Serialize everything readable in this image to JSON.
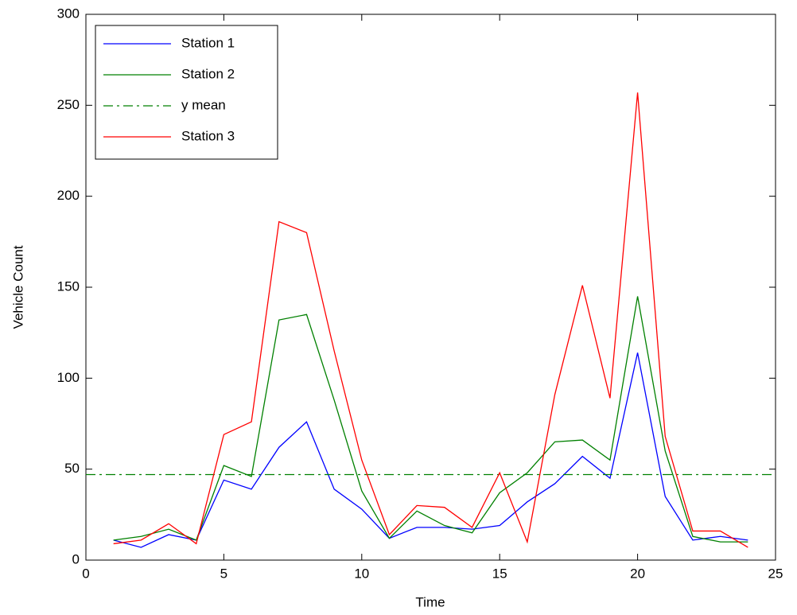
{
  "chart_data": {
    "type": "line",
    "xlabel": "Time",
    "ylabel": "Vehicle Count",
    "x": [
      1,
      2,
      3,
      4,
      5,
      6,
      7,
      8,
      9,
      10,
      11,
      12,
      13,
      14,
      15,
      16,
      17,
      18,
      19,
      20,
      21,
      22,
      23,
      24
    ],
    "series": [
      {
        "name": "Station 1",
        "color": "#0000ff",
        "style": "solid",
        "values": [
          11,
          7,
          14,
          11,
          44,
          39,
          62,
          76,
          39,
          28,
          12,
          18,
          18,
          17,
          19,
          32,
          42,
          57,
          45,
          114,
          35,
          11,
          13,
          11
        ]
      },
      {
        "name": "Station 2",
        "color": "#008000",
        "style": "solid",
        "values": [
          11,
          13,
          17,
          11,
          52,
          46,
          132,
          135,
          88,
          38,
          12,
          27,
          19,
          15,
          37,
          48,
          65,
          66,
          55,
          145,
          60,
          13,
          10,
          10
        ]
      },
      {
        "name": "y mean",
        "color": "#008000",
        "style": "dashdot",
        "x": [
          0,
          25
        ],
        "values": [
          47,
          47
        ]
      },
      {
        "name": "Station 3",
        "color": "#ff0000",
        "style": "solid",
        "values": [
          9,
          11,
          20,
          9,
          69,
          76,
          186,
          180,
          115,
          55,
          14,
          30,
          29,
          18,
          48,
          10,
          91,
          151,
          89,
          257,
          68,
          16,
          16,
          7
        ]
      }
    ],
    "xlim": [
      0,
      25
    ],
    "xticks": [
      0,
      5,
      10,
      15,
      20,
      25
    ],
    "ylim": [
      0,
      300
    ],
    "yticks": [
      0,
      50,
      100,
      150,
      200,
      250,
      300
    ],
    "grid": false,
    "legend": "top-left"
  }
}
